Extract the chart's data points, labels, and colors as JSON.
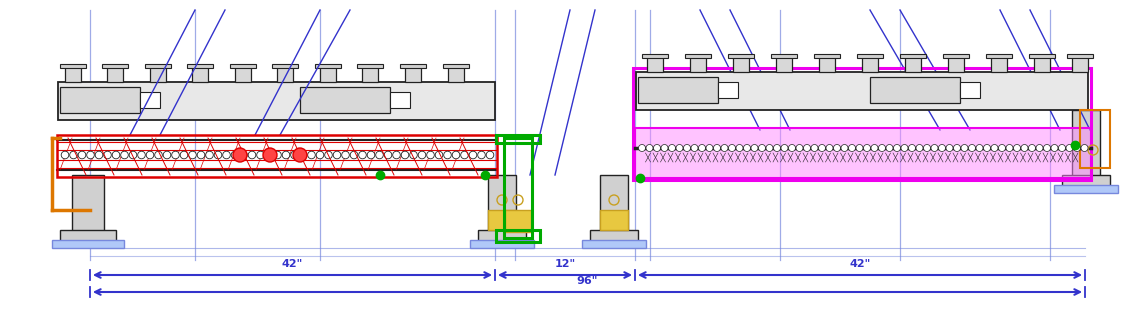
{
  "bg_color": "#ffffff",
  "fig_width": 11.4,
  "fig_height": 3.32,
  "dpi": 100,
  "dim_42_left_label": "42\"",
  "dim_12_label": "12\"",
  "dim_42_right_label": "42\"",
  "dim_96_label": "96\"",
  "blue": "#3333cc",
  "light_blue": "#7788dd",
  "red": "#dd0000",
  "green": "#00aa00",
  "magenta": "#ee00ee",
  "orange": "#dd7700",
  "dark_gray": "#222222",
  "gray": "#666666",
  "light_gray": "#cccccc",
  "mid_gray": "#999999",
  "gold": "#c8a020",
  "gold_fill": "#e8c840"
}
